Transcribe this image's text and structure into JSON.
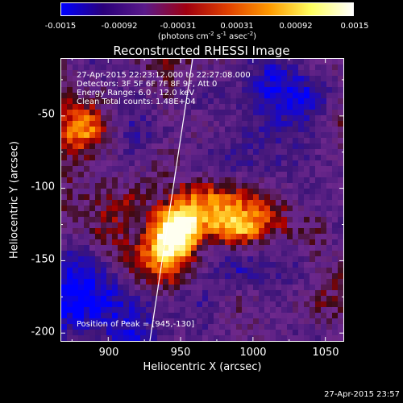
{
  "colorbar": {
    "ticks": [
      "-0.0015",
      "-0.00092",
      "-0.00031",
      "0.00031",
      "0.00092",
      "0.0015"
    ],
    "units_prefix": "(photons cm",
    "units_exp1": "-2",
    "units_mid1": " s",
    "units_exp2": "-1",
    "units_mid2": " asec",
    "units_exp3": "-2",
    "units_suffix": ")"
  },
  "title": "Reconstructed RHESSI Image",
  "info": {
    "time_range": "27-Apr-2015 22:23:12.000 to 22:27:08.000",
    "detectors": "Detectors: 3F 5F 6F 7F 8F 9F, Att 0",
    "energy": "Energy Range: 6.0 - 12.0 keV",
    "clean": "Clean    Total counts: 1.48E+04",
    "peak": "Position of Peak = [945,-130]"
  },
  "axes": {
    "xlabel": "Heliocentric X (arcsec)",
    "ylabel": "Heliocentric Y (arcsec)",
    "xticks": [
      "900",
      "950",
      "1000",
      "1050"
    ],
    "yticks": [
      "-50",
      "-100",
      "-150",
      "-200"
    ],
    "xtick_values": [
      900,
      950,
      1000,
      1050
    ],
    "ytick_values": [
      -50,
      -100,
      -150,
      -200
    ],
    "xlim": [
      867,
      1063
    ],
    "ylim": [
      -206,
      -10
    ]
  },
  "image": {
    "peak": [
      945,
      -130
    ]
  },
  "footer": {
    "timestamp": "27-Apr-2015 23:57"
  },
  "colors": {
    "colormap": [
      "#0000ff",
      "#2a007a",
      "#5a1a8a",
      "#a00010",
      "#e04000",
      "#ff9a00",
      "#ffff60",
      "#ffffff"
    ],
    "limb_line": "#ffffff"
  }
}
